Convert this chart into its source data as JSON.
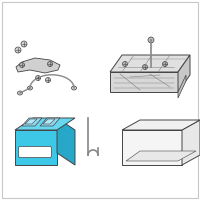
{
  "bg_color": "#ffffff",
  "border_color": "#c8c8c8",
  "battery_color": "#3ec8e8",
  "battery_dark": "#28a8c8",
  "battery_top": "#68d8f0",
  "line_color": "#888888",
  "dark_line": "#444444",
  "fig_width": 2.0,
  "fig_height": 2.0,
  "dpi": 100
}
